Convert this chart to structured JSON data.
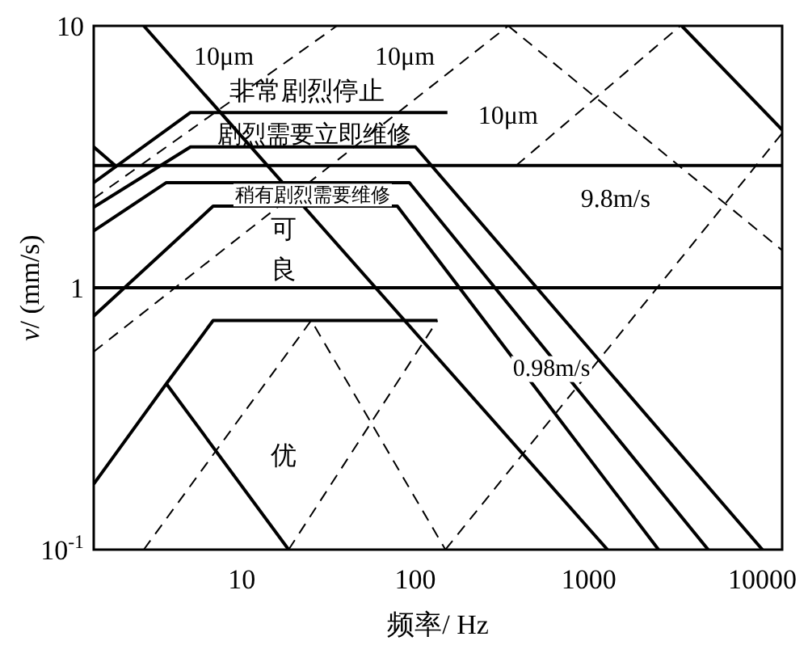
{
  "chart_data": {
    "type": "line",
    "log": "xy",
    "xlabel": "频率/ Hz",
    "ylabel": "*v*/ (mm/s)",
    "color": "#000000",
    "xlim": [
      1.4,
      13000
    ],
    "ylim": [
      0.1,
      10
    ],
    "xticks": [
      10,
      100,
      1000,
      10000
    ],
    "yticks": [
      {
        "value": 0.1,
        "label": "10$^{-1}$"
      },
      1,
      10
    ],
    "series": [
      {
        "x": [
          1.4,
          13000
        ],
        "values": [
          1,
          1
        ],
        "line_style": "solid"
      },
      {
        "x": [
          1.4,
          13000
        ],
        "values": [
          2.93,
          2.93
        ],
        "line_style": "solid"
      },
      {
        "x": [
          1.4,
          5.06,
          153
        ],
        "values": [
          2.52,
          4.67,
          4.67
        ],
        "line_style": "solid"
      },
      {
        "x": [
          1.4,
          5.06,
          100,
          10000
        ],
        "values": [
          2.03,
          3.45,
          3.45,
          0.1
        ],
        "line_style": "solid"
      },
      {
        "x": [
          1.4,
          3.67,
          92.3,
          4870
        ],
        "values": [
          1.65,
          2.52,
          2.52,
          0.1
        ],
        "line_style": "solid"
      },
      {
        "x": [
          1.4,
          6.83,
          78.7,
          2520
        ],
        "values": [
          0.78,
          2.05,
          2.05,
          0.1
        ],
        "line_style": "solid"
      },
      {
        "x": [
          2.72,
          1280
        ],
        "values": [
          10,
          0.1
        ],
        "line_style": "solid"
      },
      {
        "x": [
          1.4,
          3.67,
          6.83,
          134
        ],
        "values": [
          0.178,
          0.43,
          0.75,
          0.75
        ],
        "line_style": "solid"
      },
      {
        "x": [
          3.67,
          18.6
        ],
        "values": [
          0.43,
          0.1
        ],
        "line_style": "solid"
      },
      {
        "x": [
          1.4,
          1.86
        ],
        "values": [
          3.45,
          2.93
        ],
        "line_style": "solid"
      },
      {
        "x": [
          3430,
          13000
        ],
        "values": [
          10,
          4.01
        ],
        "line_style": "solid"
      },
      {
        "x": [
          1.4,
          35.3
        ],
        "values": [
          2.19,
          10
        ],
        "line_style": "dashed"
      },
      {
        "x": [
          1.4,
          343
        ],
        "values": [
          0.57,
          10
        ],
        "line_style": "dashed"
      },
      {
        "x": [
          2.72,
          25.1,
          149
        ],
        "values": [
          0.1,
          0.75,
          0.1
        ],
        "line_style": "dashed"
      },
      {
        "x": [
          18.6,
          134
        ],
        "values": [
          0.1,
          0.75
        ],
        "line_style": "dashed"
      },
      {
        "x": [
          381,
          3370
        ],
        "values": [
          2.93,
          10
        ],
        "line_style": "dashed"
      },
      {
        "x": [
          343,
          13000
        ],
        "values": [
          10,
          1.39
        ],
        "line_style": "dashed"
      },
      {
        "x": [
          149,
          13000
        ],
        "values": [
          0.1,
          3.89
        ],
        "line_style": "dashed"
      }
    ],
    "annotations": [
      "10μm",
      "10μm",
      "非常剧烈停止",
      "10μm",
      "剧烈需要立即维修",
      "9.8m/s",
      "稍有剧烈需要维修",
      "可",
      "良",
      "0.98m/s",
      "优"
    ]
  }
}
